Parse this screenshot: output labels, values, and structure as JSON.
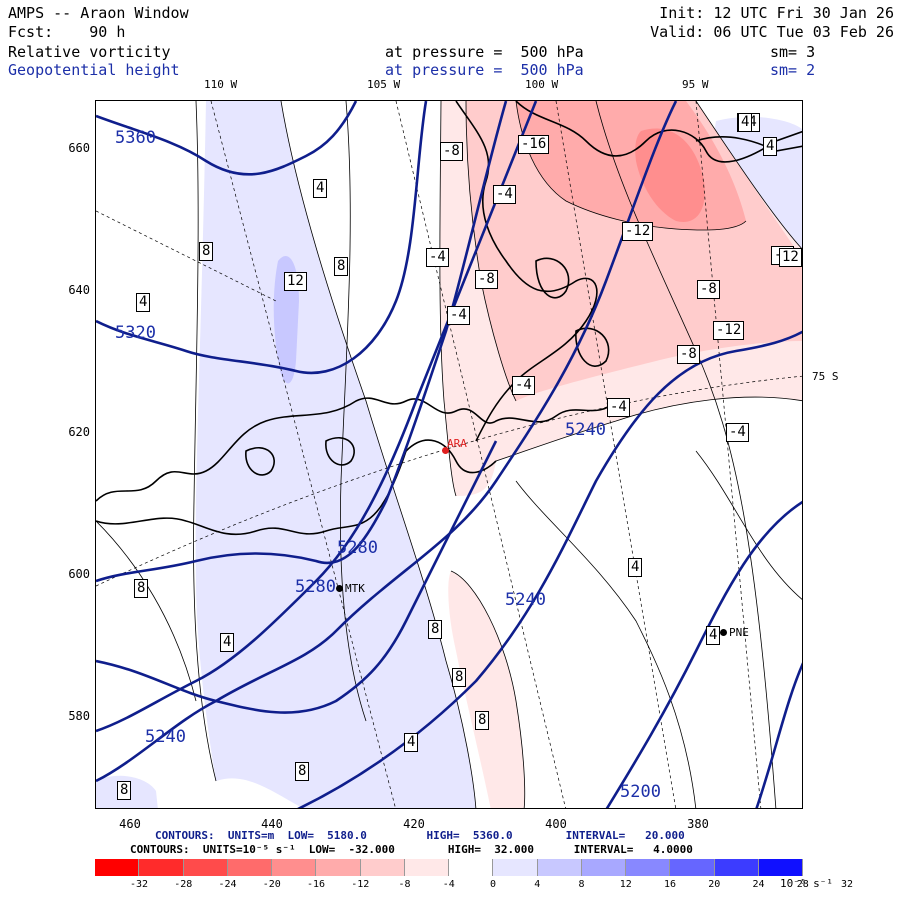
{
  "header": {
    "line1_left": "AMPS -- Araon Window",
    "line1_right": "Init: 12 UTC Fri 30 Jan 26",
    "line2_left": "Fcst:    90 h",
    "line2_right": "Valid: 06 UTC Tue 03 Feb 26",
    "field1": {
      "name": "Relative vorticity",
      "level": "at pressure =  500 hPa",
      "sm": "sm= 3"
    },
    "field2": {
      "name": "Geopotential height",
      "level": "at pressure =  500 hPa",
      "sm": "sm= 2"
    }
  },
  "top_lon_labels": [
    "110 W",
    "105 W",
    "100 W",
    "95 W"
  ],
  "lat_label": "75 S",
  "y_ticks": [
    "660",
    "640",
    "620",
    "600",
    "580"
  ],
  "x_ticks": [
    "460",
    "440",
    "420",
    "400",
    "380"
  ],
  "stations": [
    {
      "name": "ARA",
      "color": "#e02020"
    },
    {
      "name": "MTK",
      "color": "#000000"
    },
    {
      "name": "PNE",
      "color": "#000000"
    }
  ],
  "height_labels": [
    "5360",
    "5320",
    "5280",
    "5280",
    "5240",
    "5240",
    "5240",
    "5200"
  ],
  "vort_labels": [
    "-8",
    "-16",
    "-4",
    "-4",
    "-4",
    "-8",
    "-4",
    "-12",
    "-8",
    "-12",
    "-8",
    "-4",
    "-4",
    "-4",
    "-4",
    "4",
    "4",
    "8",
    "8",
    "12",
    "4",
    "8",
    "4",
    "8",
    "8",
    "8",
    "4",
    "8",
    "8",
    "4",
    "4",
    "12",
    "4"
  ],
  "footer": {
    "line1": "CONTOURS:  UNITS=m  LOW=  5180.0         HIGH=  5360.0        INTERVAL=   20.000",
    "line2": "CONTOURS:  UNITS=10⁻⁵ s⁻¹  LOW=  -32.000        HIGH=  32.000      INTERVAL=   4.0000"
  },
  "colorbar": {
    "labels": [
      "-32",
      "-28",
      "-24",
      "-20",
      "-16",
      "-12",
      "-8",
      "-4",
      "0",
      "4",
      "8",
      "12",
      "16",
      "20",
      "24",
      "28",
      "32"
    ],
    "unit": "10⁻⁵ s⁻¹",
    "colors": [
      "#ff0000",
      "#ff2b2b",
      "#ff4b4b",
      "#ff6b6b",
      "#ff8e8e",
      "#ffabab",
      "#ffcccc",
      "#ffe8e8",
      "#ffffff",
      "#ffffff",
      "#e6e6ff",
      "#c8c8ff",
      "#a8a8ff",
      "#8888ff",
      "#6666ff",
      "#3c3cff",
      "#1010ff"
    ]
  }
}
